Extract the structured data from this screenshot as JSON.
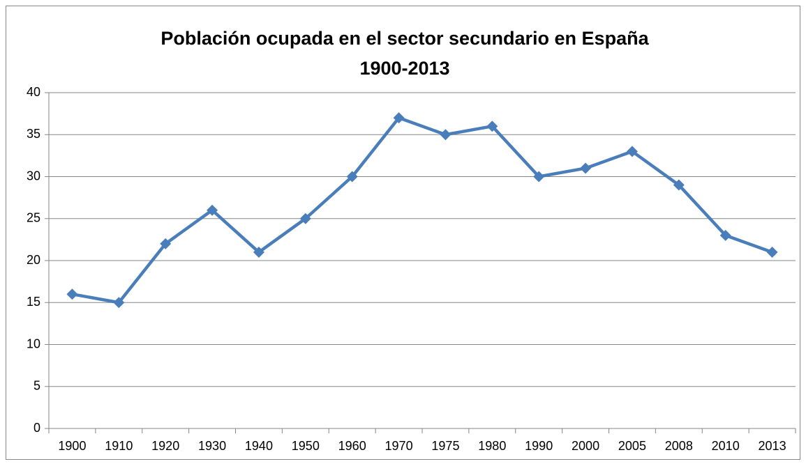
{
  "chart_data": {
    "type": "line",
    "title": [
      "Población ocupada en el sector secundario en España",
      "1900-2013"
    ],
    "categories": [
      "1900",
      "1910",
      "1920",
      "1930",
      "1940",
      "1950",
      "1960",
      "1970",
      "1975",
      "1980",
      "1990",
      "2000",
      "2005",
      "2008",
      "2010",
      "2013"
    ],
    "values": [
      16,
      15,
      22,
      26,
      21,
      25,
      30,
      37,
      35,
      36,
      30,
      31,
      33,
      29,
      23,
      21
    ],
    "color": "#4a7ebb",
    "ylim": [
      0,
      40
    ],
    "yticks": [
      0,
      5,
      10,
      15,
      20,
      25,
      30,
      35,
      40
    ],
    "grid": true
  }
}
